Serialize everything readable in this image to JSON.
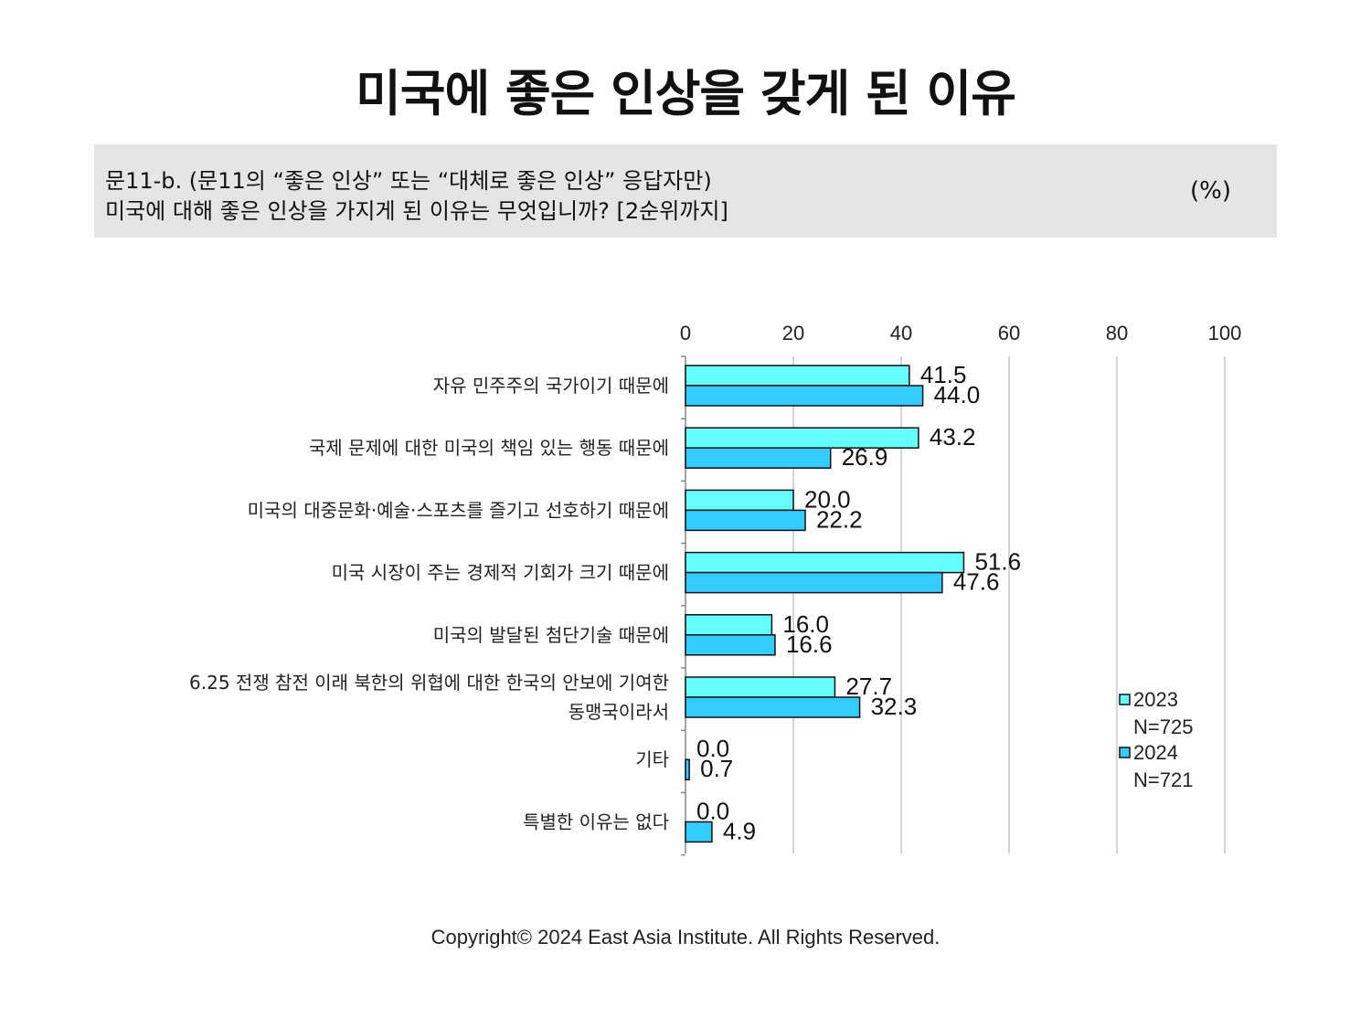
{
  "title": "미국에 좋은 인상을 갖게 된 이유",
  "question": {
    "line1": "문11-b. (문11의 “좋은 인상” 또는 “대체로 좋은 인상” 응답자만)",
    "line2": "미국에 대해 좋은 인상을 가지게 된 이유는 무엇입니까? [2순위까지]",
    "unit": "(%)"
  },
  "chart_data": {
    "type": "bar",
    "orientation": "horizontal",
    "categories": [
      [
        "자유 민주주의 국가이기 때문에"
      ],
      [
        "국제 문제에 대한 미국의 책임 있는 행동 때문에"
      ],
      [
        "미국의 대중문화·예술·스포츠를 즐기고 선호하기 때문에"
      ],
      [
        "미국 시장이 주는 경제적 기회가 크기 때문에"
      ],
      [
        "미국의 발달된 첨단기술 때문에"
      ],
      [
        "6.25 전쟁 참전 이래 북한의 위협에 대한 한국의 안보에 기여한",
        "동맹국이라서"
      ],
      [
        "기타"
      ],
      [
        "특별한 이유는 없다"
      ]
    ],
    "series": [
      {
        "name": "2023",
        "sample": "N=725",
        "color": "#66ffff",
        "values": [
          41.5,
          43.2,
          20.0,
          51.6,
          16.0,
          27.7,
          0.0,
          0.0
        ],
        "labels": [
          "41.5",
          "43.2",
          "20.0",
          "51.6",
          "16.0",
          "27.7",
          "0.0",
          "0.0"
        ]
      },
      {
        "name": "2024",
        "sample": "N=721",
        "color": "#33ccff",
        "values": [
          44.0,
          26.9,
          22.2,
          47.6,
          16.6,
          32.3,
          0.7,
          4.9
        ],
        "labels": [
          "44.0",
          "26.9",
          "22.2",
          "47.6",
          "16.6",
          "32.3",
          "0.7",
          "4.9"
        ]
      }
    ],
    "xlim": [
      0,
      100
    ],
    "xticks": [
      "0",
      "20",
      "40",
      "60",
      "80",
      "100"
    ],
    "grid": true,
    "legend_position": "right"
  },
  "copyright": "Copyright© 2024 East Asia Institute. All Rights Reserved."
}
